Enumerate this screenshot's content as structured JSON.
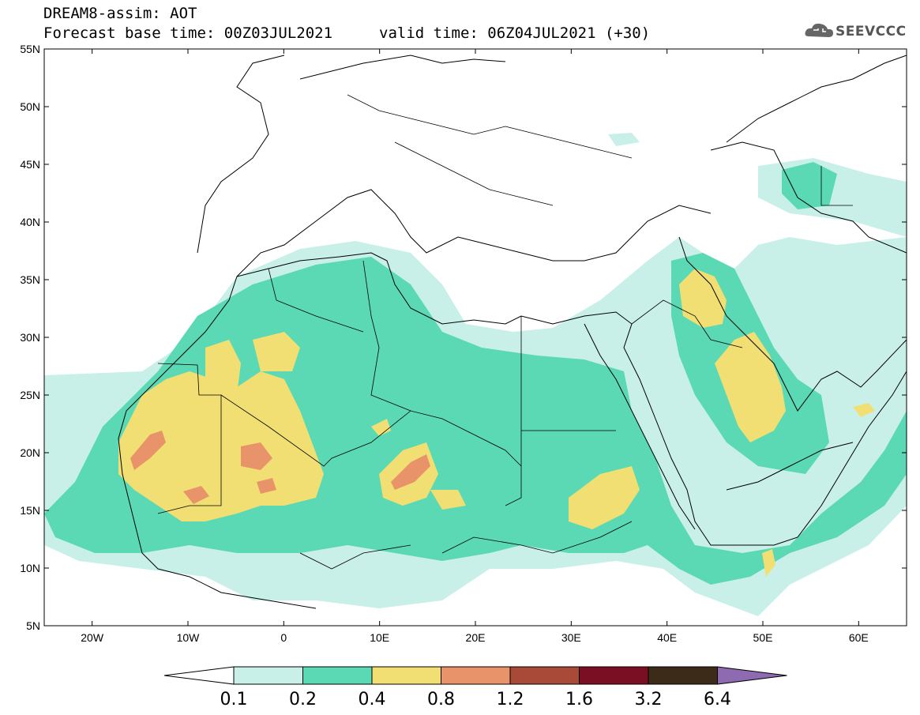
{
  "header": {
    "line1": "DREAM8-assim: AOT",
    "line2": "Forecast base time: 00Z03JUL2021",
    "line3": "valid time: 06Z04JUL2021 (+30)",
    "logo": "SEEVCCC"
  },
  "map": {
    "lat_labels": [
      "55N",
      "50N",
      "45N",
      "40N",
      "35N",
      "30N",
      "25N",
      "20N",
      "15N",
      "10N",
      "5N"
    ],
    "lon_labels": [
      "20W",
      "10W",
      "0",
      "10E",
      "20E",
      "30E",
      "40E",
      "50E",
      "60E"
    ],
    "lat_range": [
      5,
      55
    ],
    "lon_range": [
      -25,
      65
    ]
  },
  "colorbar": {
    "labels": [
      "0.1",
      "0.2",
      "0.4",
      "0.8",
      "1.2",
      "1.6",
      "3.2",
      "6.4"
    ],
    "colors": [
      "#c8f0e8",
      "#5ad9b4",
      "#f2df73",
      "#e8936a",
      "#a94a38",
      "#7a0f24",
      "#3d2b1a",
      "#8e6ab0"
    ]
  }
}
